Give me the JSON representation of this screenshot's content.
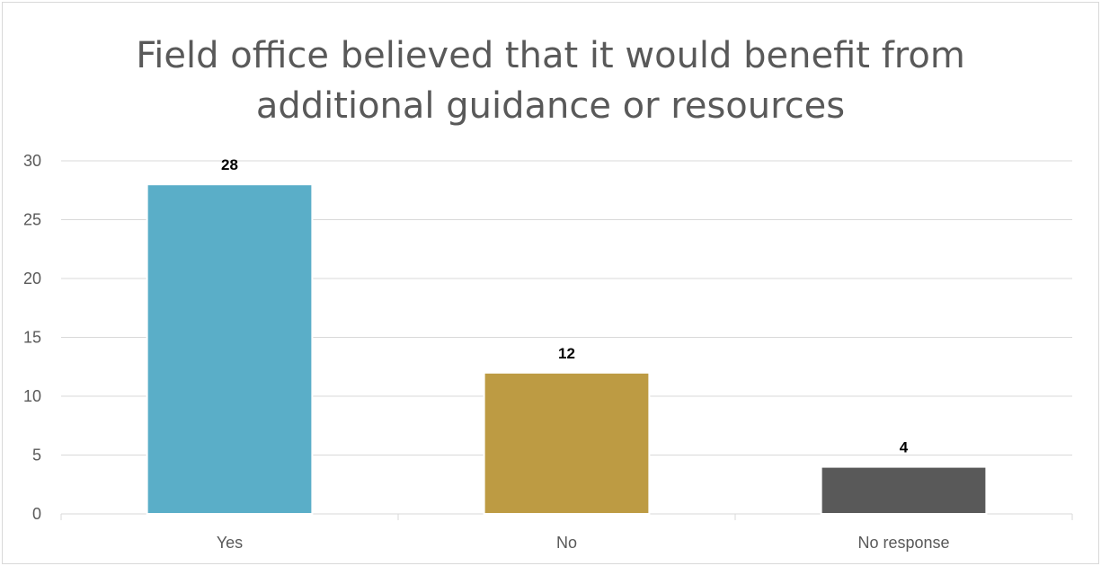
{
  "chart_data": {
    "type": "bar",
    "title_lines": [
      "Field office believed that it would benefit from",
      "additional guidance or resources"
    ],
    "categories": [
      "Yes",
      "No",
      "No response"
    ],
    "values": [
      28,
      12,
      4
    ],
    "colors": [
      "#5aaec8",
      "#bd9b43",
      "#595959"
    ],
    "ylim": [
      0,
      30
    ],
    "yticks": [
      0,
      5,
      10,
      15,
      20,
      25,
      30
    ],
    "grid": true,
    "xlabel": "",
    "ylabel": "",
    "data_labels": [
      "28",
      "12",
      "4"
    ]
  }
}
